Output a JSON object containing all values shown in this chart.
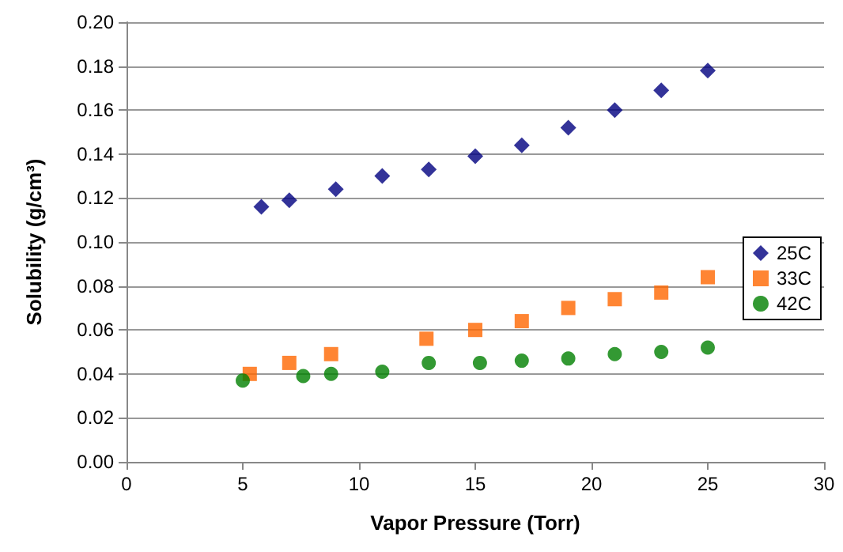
{
  "chart_data": {
    "type": "scatter",
    "xlabel": "Vapor Pressure (Torr)",
    "ylabel": "Solubility (g/cm³)",
    "xlim": [
      0,
      30
    ],
    "xticks": [
      0,
      5,
      10,
      15,
      20,
      25,
      30
    ],
    "ylim": [
      0,
      0.2
    ],
    "yticks": [
      {
        "value": 0,
        "label": "0.00"
      },
      0.02,
      0.04,
      0.06,
      0.08,
      {
        "value": 0.1,
        "label": "0.10"
      },
      0.12,
      0.14,
      0.16,
      0.18,
      {
        "value": 0.2,
        "label": "0.20"
      }
    ],
    "grid": "y",
    "legend": "right",
    "series": [
      {
        "name": "25C",
        "color": "#000080",
        "marker": "diamond",
        "x": [
          5.8,
          7,
          9,
          11,
          13,
          15,
          17,
          19,
          21,
          23,
          25
        ],
        "values": [
          0.116,
          0.119,
          0.124,
          0.13,
          0.133,
          0.139,
          0.144,
          0.152,
          0.16,
          0.169,
          0.178
        ]
      },
      {
        "name": "33C",
        "color": "#ff6600",
        "marker": "square",
        "x": [
          5.3,
          7,
          8.8,
          12.9,
          15,
          17,
          19,
          21,
          23,
          25
        ],
        "values": [
          0.04,
          0.045,
          0.049,
          0.056,
          0.06,
          0.064,
          0.07,
          0.074,
          0.077,
          0.084
        ]
      },
      {
        "name": "42C",
        "color": "#008000",
        "marker": "circle",
        "x": [
          5,
          7.6,
          8.8,
          11,
          13,
          15.2,
          17,
          19,
          21,
          23,
          25
        ],
        "values": [
          0.037,
          0.039,
          0.04,
          0.041,
          0.045,
          0.045,
          0.046,
          0.047,
          0.049,
          0.05,
          0.052
        ]
      }
    ]
  }
}
